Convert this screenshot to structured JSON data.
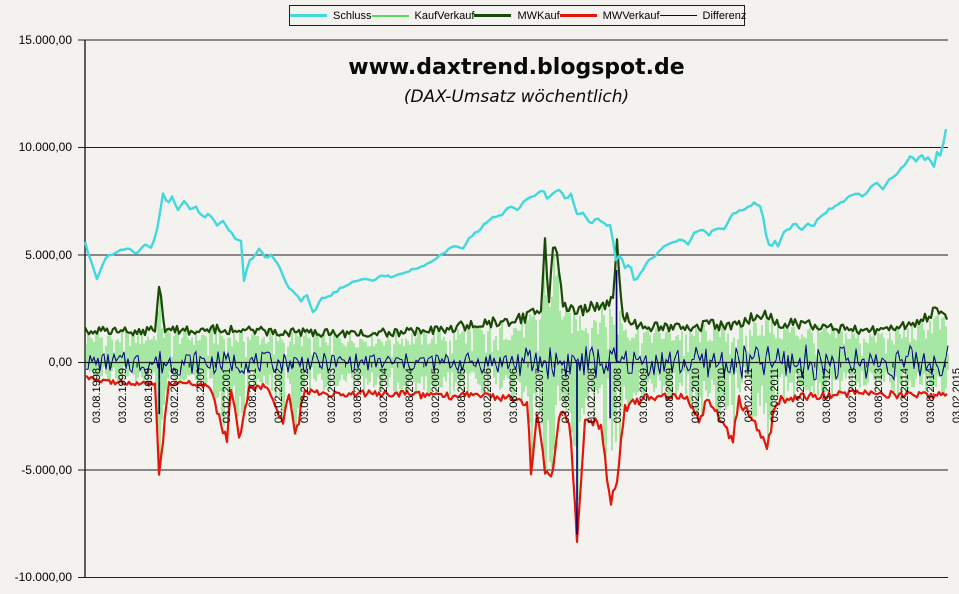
{
  "page": {
    "title": "www.daxtrend.blogspot.de",
    "subtitle": "(DAX-Umsatz wöchentlich)"
  },
  "chart_data": {
    "type": "line",
    "title": "www.daxtrend.blogspot.de",
    "subtitle": "(DAX-Umsatz wöchentlich)",
    "style": {
      "background": "#F4F2EE",
      "gridline_color": "#1f1f1f",
      "axis_color": "#1f1f1f",
      "text_color": "#000000"
    },
    "y_axis": {
      "range": [
        -10000,
        15000
      ],
      "gridlines": true,
      "ticks": [
        {
          "label": "15.000,00",
          "value": 15000
        },
        {
          "label": "10.000,00",
          "value": 10000
        },
        {
          "label": "5.000,00",
          "value": 5000
        },
        {
          "label": "0,00",
          "value": 0
        },
        {
          "label": "-5.000,00",
          "value": -5000
        },
        {
          "label": "-10.000,00",
          "value": -10000
        }
      ]
    },
    "x_axis": {
      "rotation": -90,
      "labels": [
        "03.08.1998",
        "03.02.1999",
        "03.08.1999",
        "03.02.2000",
        "03.08.2000",
        "03.02.2001",
        "03.08.2001",
        "03.02.2002",
        "03.08.2002",
        "03.02.2003",
        "03.08.2003",
        "03.02.2004",
        "03.08.2004",
        "03.02.2005",
        "03.08.2005",
        "03.02.2006",
        "03.08.2006",
        "03.02.2007",
        "03.08.2007",
        "03.02.2008",
        "03.08.2008",
        "03.02.2009",
        "03.08.2009",
        "03.02.2010",
        "03.08.2010",
        "03.02.2011",
        "03.08.2011",
        "03.02.2012",
        "03.08.2012",
        "03.02.2013",
        "03.08.2013",
        "03.02.2014",
        "03.08.2014",
        "03.02.2015"
      ]
    },
    "legend": {
      "position": "top",
      "entries": [
        {
          "label": "Schluss",
          "color": "#40D8DE"
        },
        {
          "label": "KaufVerkauf",
          "color": "#58DC58"
        },
        {
          "label": "MWKauf",
          "color": "#1B4A08"
        },
        {
          "label": "MWVerkauf",
          "color": "#E2170C"
        },
        {
          "label": "Differenz",
          "color": "#00007E"
        }
      ]
    },
    "x_unit": "half-year index, 0 = 03.08.1998, 33 = 03.02.2015",
    "series": {
      "schluss": {
        "name": "Schluss",
        "color": "#40D8DE",
        "keypoints": [
          [
            0,
            5600
          ],
          [
            0.2,
            4800
          ],
          [
            0.45,
            3900
          ],
          [
            0.8,
            4900
          ],
          [
            1.15,
            5050
          ],
          [
            1.4,
            5300
          ],
          [
            1.75,
            5250
          ],
          [
            2.0,
            5050
          ],
          [
            2.3,
            5500
          ],
          [
            2.55,
            5300
          ],
          [
            2.8,
            6400
          ],
          [
            3.0,
            7900
          ],
          [
            3.15,
            7350
          ],
          [
            3.35,
            7700
          ],
          [
            3.55,
            7100
          ],
          [
            3.8,
            7500
          ],
          [
            4.05,
            7100
          ],
          [
            4.25,
            7250
          ],
          [
            4.55,
            6700
          ],
          [
            4.75,
            6950
          ],
          [
            5.05,
            6400
          ],
          [
            5.25,
            6600
          ],
          [
            5.55,
            6150
          ],
          [
            5.75,
            5800
          ],
          [
            6.0,
            5600
          ],
          [
            6.1,
            3800
          ],
          [
            6.3,
            4700
          ],
          [
            6.5,
            4900
          ],
          [
            6.7,
            5350
          ],
          [
            6.95,
            4850
          ],
          [
            7.15,
            5050
          ],
          [
            7.45,
            4450
          ],
          [
            7.75,
            3600
          ],
          [
            8.05,
            3250
          ],
          [
            8.3,
            2850
          ],
          [
            8.5,
            3150
          ],
          [
            8.65,
            2650
          ],
          [
            8.8,
            2250
          ],
          [
            9.05,
            2950
          ],
          [
            9.4,
            3100
          ],
          [
            9.8,
            3450
          ],
          [
            10.15,
            3650
          ],
          [
            10.65,
            3900
          ],
          [
            11.0,
            3800
          ],
          [
            11.45,
            4050
          ],
          [
            11.85,
            3950
          ],
          [
            12.3,
            4250
          ],
          [
            12.8,
            4350
          ],
          [
            13.25,
            4700
          ],
          [
            13.75,
            5100
          ],
          [
            14.2,
            5450
          ],
          [
            14.45,
            5250
          ],
          [
            14.75,
            5800
          ],
          [
            15.15,
            6200
          ],
          [
            15.6,
            6750
          ],
          [
            16.05,
            6900
          ],
          [
            16.3,
            7300
          ],
          [
            16.55,
            7050
          ],
          [
            16.9,
            7550
          ],
          [
            17.2,
            7750
          ],
          [
            17.55,
            8050
          ],
          [
            17.75,
            7600
          ],
          [
            17.95,
            7900
          ],
          [
            18.25,
            8000
          ],
          [
            18.45,
            7500
          ],
          [
            18.65,
            7850
          ],
          [
            18.9,
            6850
          ],
          [
            19.1,
            6950
          ],
          [
            19.4,
            6450
          ],
          [
            19.65,
            6750
          ],
          [
            19.9,
            6450
          ],
          [
            20.2,
            6350
          ],
          [
            20.35,
            4750
          ],
          [
            20.55,
            5000
          ],
          [
            20.7,
            4350
          ],
          [
            20.9,
            4650
          ],
          [
            21.1,
            3700
          ],
          [
            21.35,
            4250
          ],
          [
            21.6,
            4700
          ],
          [
            21.9,
            4950
          ],
          [
            22.25,
            5450
          ],
          [
            22.6,
            5600
          ],
          [
            22.9,
            5750
          ],
          [
            23.15,
            5450
          ],
          [
            23.35,
            6050
          ],
          [
            23.7,
            6150
          ],
          [
            23.95,
            5950
          ],
          [
            24.2,
            6250
          ],
          [
            24.5,
            6150
          ],
          [
            24.85,
            6900
          ],
          [
            25.15,
            7100
          ],
          [
            25.45,
            7200
          ],
          [
            25.7,
            7450
          ],
          [
            25.95,
            7250
          ],
          [
            26.15,
            5850
          ],
          [
            26.3,
            5200
          ],
          [
            26.45,
            5750
          ],
          [
            26.6,
            5350
          ],
          [
            26.8,
            6000
          ],
          [
            27.05,
            6250
          ],
          [
            27.3,
            6500
          ],
          [
            27.45,
            6150
          ],
          [
            27.7,
            6450
          ],
          [
            27.95,
            6300
          ],
          [
            28.2,
            6800
          ],
          [
            28.6,
            7150
          ],
          [
            29.0,
            7400
          ],
          [
            29.35,
            7700
          ],
          [
            29.65,
            7950
          ],
          [
            29.85,
            7650
          ],
          [
            30.1,
            8100
          ],
          [
            30.4,
            8350
          ],
          [
            30.6,
            8050
          ],
          [
            30.9,
            8550
          ],
          [
            31.15,
            8800
          ],
          [
            31.45,
            9200
          ],
          [
            31.7,
            9600
          ],
          [
            31.9,
            9350
          ],
          [
            32.1,
            9700
          ],
          [
            32.25,
            9350
          ],
          [
            32.4,
            9650
          ],
          [
            32.55,
            8900
          ],
          [
            32.7,
            9800
          ],
          [
            32.85,
            9550
          ],
          [
            33.0,
            10600
          ],
          [
            33.1,
            11350
          ]
        ]
      },
      "mw_kauf": {
        "name": "MWKauf",
        "color": "#1B4A08",
        "keypoints": [
          [
            0,
            1450
          ],
          [
            1,
            1500
          ],
          [
            2,
            1450
          ],
          [
            2.7,
            1500
          ],
          [
            2.85,
            3450
          ],
          [
            3.05,
            1600
          ],
          [
            4,
            1500
          ],
          [
            5,
            1550
          ],
          [
            6,
            1500
          ],
          [
            7,
            1450
          ],
          [
            8,
            1400
          ],
          [
            9,
            1400
          ],
          [
            10,
            1350
          ],
          [
            11,
            1400
          ],
          [
            12,
            1400
          ],
          [
            13,
            1450
          ],
          [
            14,
            1600
          ],
          [
            15,
            1800
          ],
          [
            16,
            1900
          ],
          [
            17,
            2100
          ],
          [
            17.5,
            2600
          ],
          [
            17.65,
            5800
          ],
          [
            17.8,
            2800
          ],
          [
            17.95,
            5450
          ],
          [
            18.1,
            4950
          ],
          [
            18.35,
            2600
          ],
          [
            19,
            2400
          ],
          [
            19.5,
            2600
          ],
          [
            20,
            2700
          ],
          [
            20.3,
            3000
          ],
          [
            20.4,
            6200
          ],
          [
            20.6,
            2300
          ],
          [
            21,
            1750
          ],
          [
            22,
            1650
          ],
          [
            23,
            1600
          ],
          [
            24,
            1750
          ],
          [
            25,
            1700
          ],
          [
            26,
            2300
          ],
          [
            26.5,
            1900
          ],
          [
            27,
            1800
          ],
          [
            28,
            1700
          ],
          [
            29,
            1600
          ],
          [
            30,
            1500
          ],
          [
            31,
            1550
          ],
          [
            32,
            1800
          ],
          [
            32.6,
            2400
          ],
          [
            33.1,
            1950
          ]
        ]
      },
      "mw_verkauf": {
        "name": "MWVerkauf",
        "color": "#E2170C",
        "keypoints": [
          [
            0,
            -700
          ],
          [
            0.5,
            -850
          ],
          [
            1,
            -900
          ],
          [
            2,
            -950
          ],
          [
            2.7,
            -1000
          ],
          [
            2.85,
            -5300
          ],
          [
            3.2,
            -1000
          ],
          [
            4,
            -950
          ],
          [
            4.8,
            -1100
          ],
          [
            5.45,
            -3700
          ],
          [
            5.6,
            -1200
          ],
          [
            5.95,
            -3600
          ],
          [
            6.3,
            -1150
          ],
          [
            7,
            -1100
          ],
          [
            7.6,
            -2900
          ],
          [
            7.8,
            -1250
          ],
          [
            8.1,
            -3400
          ],
          [
            8.4,
            -1350
          ],
          [
            9,
            -1400
          ],
          [
            10,
            -1450
          ],
          [
            11,
            -1400
          ],
          [
            12,
            -1500
          ],
          [
            13,
            -1500
          ],
          [
            14,
            -1550
          ],
          [
            15,
            -1500
          ],
          [
            16,
            -1600
          ],
          [
            17,
            -1800
          ],
          [
            17.1,
            -5600
          ],
          [
            17.35,
            -2200
          ],
          [
            17.65,
            -5000
          ],
          [
            17.95,
            -5300
          ],
          [
            18.2,
            -2400
          ],
          [
            18.6,
            -2600
          ],
          [
            18.88,
            -8300
          ],
          [
            19.2,
            -2500
          ],
          [
            19.8,
            -3000
          ],
          [
            20.15,
            -6500
          ],
          [
            20.4,
            -5800
          ],
          [
            20.7,
            -2200
          ],
          [
            21,
            -1900
          ],
          [
            21.5,
            -1650
          ],
          [
            22,
            -1650
          ],
          [
            23,
            -1500
          ],
          [
            23.6,
            -2800
          ],
          [
            23.9,
            -1600
          ],
          [
            24.85,
            -3600
          ],
          [
            25.1,
            -1700
          ],
          [
            26.2,
            -3900
          ],
          [
            26.5,
            -1800
          ],
          [
            27,
            -1650
          ],
          [
            28,
            -1550
          ],
          [
            29,
            -1500
          ],
          [
            30,
            -1400
          ],
          [
            31,
            -1500
          ],
          [
            32,
            -1450
          ],
          [
            33.1,
            -1550
          ]
        ]
      },
      "kauf_verkauf": {
        "name": "KaufVerkauf",
        "color": "#58DC58",
        "render": "dense weekly vertical oscillation spanning between the mw_verkauf (bottom) and mw_kauf (top) envelopes"
      },
      "differenz": {
        "name": "Differenz",
        "color": "#00007E",
        "render": "noisy oscillation around zero",
        "amplitude_keypoints": [
          [
            0,
            350
          ],
          [
            3,
            550
          ],
          [
            6,
            450
          ],
          [
            9,
            400
          ],
          [
            12,
            380
          ],
          [
            15,
            420
          ],
          [
            17,
            650
          ],
          [
            19,
            750
          ],
          [
            21,
            550
          ],
          [
            24,
            650
          ],
          [
            27,
            750
          ],
          [
            30,
            680
          ],
          [
            33.1,
            720
          ]
        ],
        "spikes": [
          [
            2.85,
            -2400
          ],
          [
            18.88,
            -8000
          ],
          [
            20.15,
            -2600
          ],
          [
            20.4,
            4300
          ]
        ]
      }
    }
  }
}
